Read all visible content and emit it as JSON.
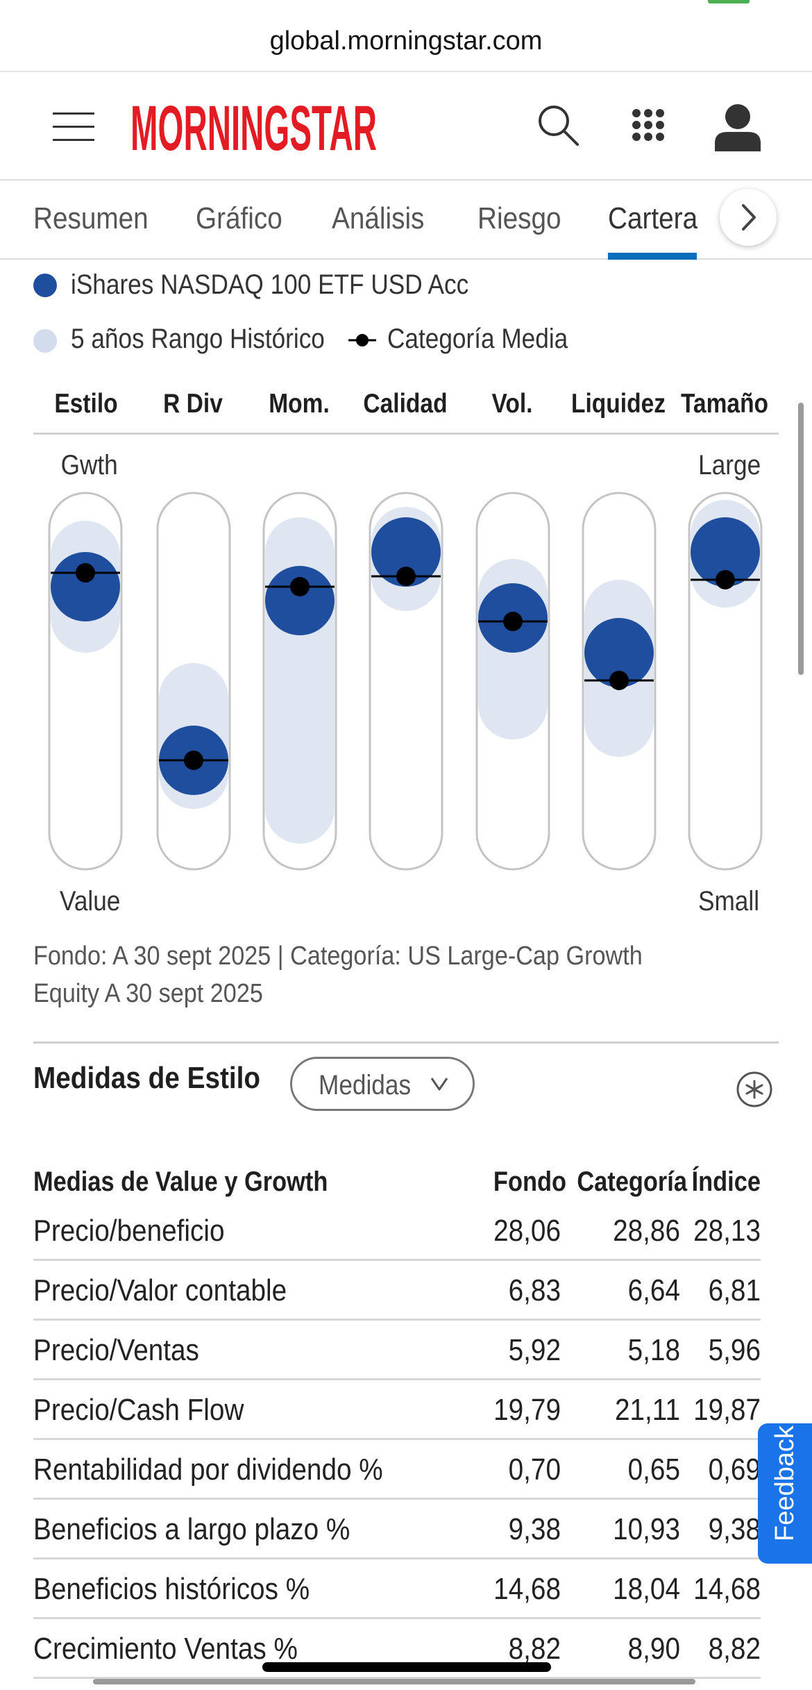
{
  "browser": {
    "url": "global.morningstar.com"
  },
  "header": {
    "logo_text": "MORNINGSTAR",
    "brand_color": "#e31b23"
  },
  "tabs": [
    {
      "label": "Resumen",
      "active": false
    },
    {
      "label": "Gráfico",
      "active": false
    },
    {
      "label": "Análisis",
      "active": false
    },
    {
      "label": "Riesgo",
      "active": false
    },
    {
      "label": "Cartera",
      "active": true
    }
  ],
  "legend": {
    "fund": "iShares NASDAQ 100 ETF USD Acc",
    "range": "5 años Rango Histórico",
    "category": "Categoría Media"
  },
  "colors": {
    "fund": "#1f4e9e",
    "range": "#dfe6f1",
    "accent": "#0a6ebd"
  },
  "chart_data": {
    "type": "range-dot",
    "columns": [
      "Estilo",
      "R Div",
      "Mom.",
      "Calidad",
      "Vol.",
      "Liquidez",
      "Tamaño"
    ],
    "top_label": "Gwth",
    "top_label_right": "Large",
    "bottom_label": "Value",
    "bottom_label_right": "Small",
    "scale": [
      0,
      100
    ],
    "series": [
      {
        "name": "iShares NASDAQ 100 ETF USD Acc",
        "values": [
          77,
          27,
          73,
          87,
          68,
          58,
          87
        ]
      },
      {
        "name": "5 años Rango Histórico",
        "ranges": [
          [
            62,
            92
          ],
          [
            17,
            51
          ],
          [
            7,
            93
          ],
          [
            74,
            96
          ],
          [
            37,
            81
          ],
          [
            32,
            75
          ],
          [
            75,
            98
          ]
        ]
      },
      {
        "name": "Categoría Media",
        "values": [
          81,
          27,
          77,
          80,
          67,
          50,
          79
        ]
      }
    ]
  },
  "footnote": "Fondo: A 30 sept 2025 | Categoría: US Large-Cap Growth Equity A 30 sept 2025",
  "style_measures": {
    "title": "Medidas de Estilo",
    "dropdown": "Medidas",
    "table_title": "Medias de Value y Growth",
    "columns": [
      "Fondo",
      "Categoría",
      "Índice"
    ],
    "rows": [
      {
        "label": "Precio/beneficio",
        "values": [
          "28,06",
          "28,86",
          "28,13"
        ]
      },
      {
        "label": "Precio/Valor contable",
        "values": [
          "6,83",
          "6,64",
          "6,81"
        ]
      },
      {
        "label": "Precio/Ventas",
        "values": [
          "5,92",
          "5,18",
          "5,96"
        ]
      },
      {
        "label": "Precio/Cash Flow",
        "values": [
          "19,79",
          "21,11",
          "19,87"
        ]
      },
      {
        "label": "Rentabilidad por dividendo %",
        "values": [
          "0,70",
          "0,65",
          "0,69"
        ]
      },
      {
        "label": "Beneficios a largo plazo %",
        "values": [
          "9,38",
          "10,93",
          "9,38"
        ]
      },
      {
        "label": "Beneficios históricos %",
        "values": [
          "14,68",
          "18,04",
          "14,68"
        ]
      },
      {
        "label": "Crecimiento Ventas %",
        "values": [
          "8,82",
          "8,90",
          "8,82"
        ]
      }
    ]
  },
  "feedback": {
    "label": "Feedback"
  }
}
